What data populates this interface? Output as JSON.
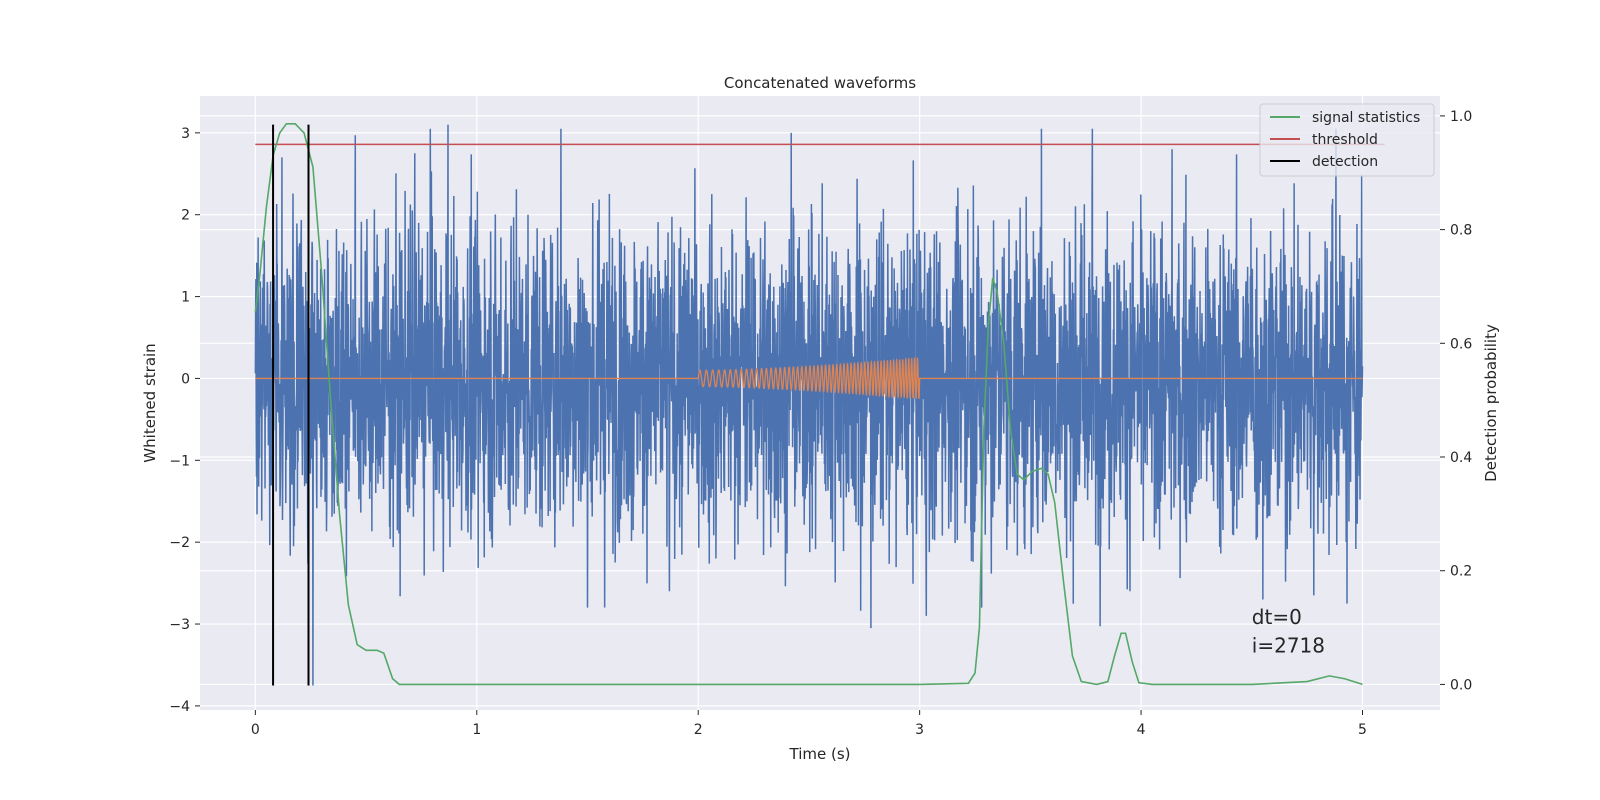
{
  "chart_data": {
    "type": "line",
    "title": "Concatenated waveforms",
    "xlabel": "Time (s)",
    "ylabel": "Whitened strain",
    "y2label": "Detection probability",
    "xlim": [
      -0.25,
      5.35
    ],
    "ylim": [
      -4.05,
      3.45
    ],
    "y2lim": [
      -0.045,
      1.035
    ],
    "x_ticks": [
      0,
      1,
      2,
      3,
      4,
      5
    ],
    "x_tick_labels": [
      "0",
      "1",
      "2",
      "3",
      "4",
      "5"
    ],
    "y_ticks": [
      -4,
      -3,
      -2,
      -1,
      0,
      1,
      2,
      3
    ],
    "y_tick_labels": [
      "−4",
      "−3",
      "−2",
      "−1",
      "0",
      "1",
      "2",
      "3"
    ],
    "y2_ticks": [
      0.0,
      0.2,
      0.4,
      0.6,
      0.8,
      1.0
    ],
    "y2_tick_labels": [
      "0.0",
      "0.2",
      "0.4",
      "0.6",
      "0.8",
      "1.0"
    ],
    "grid": true,
    "legend_position": "top-right",
    "legend": [
      {
        "label": "signal statistics",
        "color": "#55a868"
      },
      {
        "label": "threshold",
        "color": "#c44e52"
      },
      {
        "label": "detection",
        "color": "#000000"
      }
    ],
    "series": [
      {
        "role": "noise",
        "color": "#4c72b0",
        "x_range": [
          0,
          5
        ],
        "typical_amplitude": 2.0,
        "y_max": 3.1,
        "y_min": -3.75,
        "spikes": [
          {
            "x": 0.12,
            "y": 2.7
          },
          {
            "x": 0.26,
            "y": -3.75
          },
          {
            "x": 0.72,
            "y": 2.75
          },
          {
            "x": 0.79,
            "y": 3.05
          },
          {
            "x": 0.87,
            "y": 3.1
          },
          {
            "x": 1.38,
            "y": 3.05
          },
          {
            "x": 1.5,
            "y": -2.8
          },
          {
            "x": 1.87,
            "y": -2.6
          },
          {
            "x": 2.08,
            "y": -2.2
          },
          {
            "x": 2.42,
            "y": 3.0
          },
          {
            "x": 2.78,
            "y": -3.05
          },
          {
            "x": 3.03,
            "y": -2.9
          },
          {
            "x": 3.28,
            "y": -2.8
          },
          {
            "x": 3.55,
            "y": 3.05
          },
          {
            "x": 3.78,
            "y": 3.05
          },
          {
            "x": 3.95,
            "y": -2.6
          },
          {
            "x": 4.14,
            "y": 2.8
          },
          {
            "x": 4.55,
            "y": -2.7
          },
          {
            "x": 4.78,
            "y": -2.65
          },
          {
            "x": 4.88,
            "y": 3.05
          },
          {
            "x": 4.93,
            "y": -2.75
          }
        ]
      },
      {
        "role": "injected waveform",
        "color": "#dd8452",
        "x_range": [
          0,
          5
        ],
        "chirp": {
          "x_start": 2.0,
          "x_end": 3.0,
          "amp_start": 0.1,
          "amp_end": 0.25,
          "cycles": 55
        }
      },
      {
        "name": "signal statistics",
        "axis": "right",
        "color": "#55a868",
        "points": [
          [
            0.0,
            0.655
          ],
          [
            0.02,
            0.72
          ],
          [
            0.05,
            0.84
          ],
          [
            0.08,
            0.93
          ],
          [
            0.11,
            0.97
          ],
          [
            0.14,
            0.986
          ],
          [
            0.18,
            0.986
          ],
          [
            0.22,
            0.97
          ],
          [
            0.26,
            0.91
          ],
          [
            0.3,
            0.72
          ],
          [
            0.34,
            0.5
          ],
          [
            0.38,
            0.3
          ],
          [
            0.42,
            0.14
          ],
          [
            0.46,
            0.07
          ],
          [
            0.5,
            0.06
          ],
          [
            0.55,
            0.06
          ],
          [
            0.58,
            0.055
          ],
          [
            0.62,
            0.01
          ],
          [
            0.65,
            0.0
          ],
          [
            1.0,
            0.0
          ],
          [
            2.0,
            0.0
          ],
          [
            3.0,
            0.0
          ],
          [
            3.22,
            0.002
          ],
          [
            3.25,
            0.02
          ],
          [
            3.27,
            0.1
          ],
          [
            3.29,
            0.45
          ],
          [
            3.31,
            0.63
          ],
          [
            3.33,
            0.715
          ],
          [
            3.35,
            0.69
          ],
          [
            3.38,
            0.6
          ],
          [
            3.41,
            0.45
          ],
          [
            3.44,
            0.37
          ],
          [
            3.47,
            0.36
          ],
          [
            3.51,
            0.375
          ],
          [
            3.55,
            0.38
          ],
          [
            3.58,
            0.37
          ],
          [
            3.61,
            0.32
          ],
          [
            3.65,
            0.18
          ],
          [
            3.69,
            0.05
          ],
          [
            3.73,
            0.005
          ],
          [
            3.8,
            0.0
          ],
          [
            3.85,
            0.005
          ],
          [
            3.88,
            0.05
          ],
          [
            3.91,
            0.09
          ],
          [
            3.93,
            0.09
          ],
          [
            3.96,
            0.04
          ],
          [
            3.99,
            0.003
          ],
          [
            4.05,
            0.0
          ],
          [
            4.5,
            0.0
          ],
          [
            4.75,
            0.005
          ],
          [
            4.85,
            0.015
          ],
          [
            4.92,
            0.01
          ],
          [
            5.0,
            0.0
          ]
        ]
      },
      {
        "name": "threshold",
        "axis": "right",
        "color": "#c44e52",
        "value": 0.95,
        "x_range": [
          0,
          5.1
        ]
      },
      {
        "name": "detection",
        "color": "#000000",
        "x_values": [
          0.08,
          0.24
        ],
        "y_range": [
          -3.75,
          3.1
        ]
      }
    ],
    "annotations": [
      {
        "text": "dt=0",
        "x": 4.5,
        "y": -3.0
      },
      {
        "text": "i=2718",
        "x": 4.5,
        "y": -3.35
      }
    ]
  }
}
